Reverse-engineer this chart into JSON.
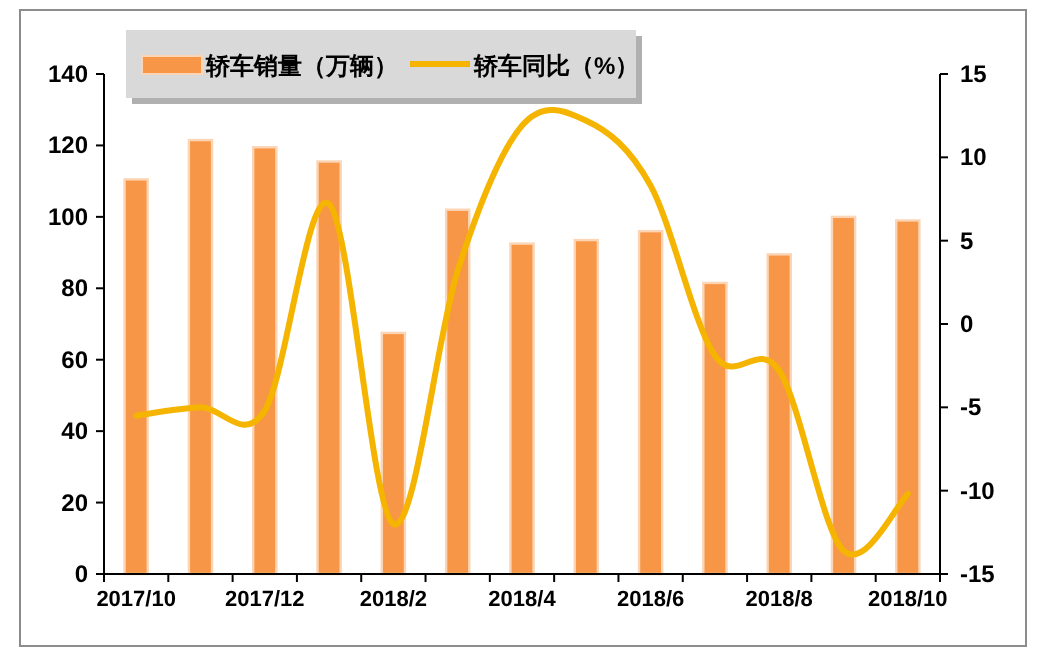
{
  "chart_data": {
    "type": "bar",
    "categories": [
      "2017/10",
      null,
      "2017/12",
      null,
      "2018/2",
      null,
      "2018/4",
      null,
      "2018/6",
      null,
      "2018/8",
      null,
      "2018/10"
    ],
    "series": [
      {
        "name": "轿车销量（万辆）",
        "color": "#f79646",
        "values": [
          110.5,
          121.5,
          119.5,
          115.5,
          67.5,
          102,
          92.5,
          93.5,
          96,
          81.5,
          89.5,
          100,
          99
        ]
      },
      {
        "name": "轿车同比（%）",
        "type": "line",
        "axis": "y2",
        "color": "#f5b400",
        "values": [
          -5.5,
          -5,
          -5.2,
          7.2,
          -12,
          3.2,
          11.9,
          12.2,
          8.3,
          -1.9,
          -2.8,
          -13.6,
          -10.2
        ]
      }
    ],
    "ylim": [
      0,
      140
    ],
    "yticks": [
      0,
      20,
      40,
      60,
      80,
      100,
      120,
      140
    ],
    "y2lim": [
      -15,
      15
    ],
    "y2ticks": [
      -15,
      -10,
      -5,
      0,
      5,
      10,
      15
    ],
    "legend": "top left",
    "grid": false
  }
}
